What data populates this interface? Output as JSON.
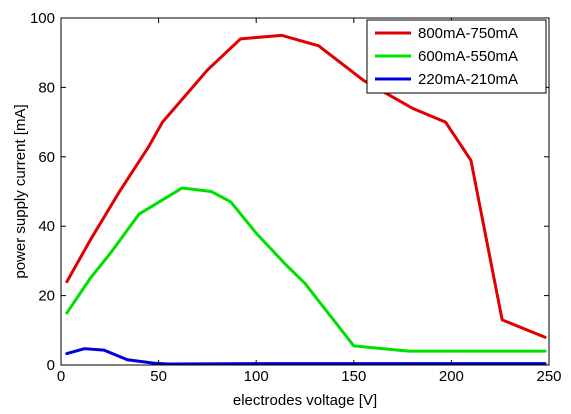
{
  "chart_data": {
    "type": "line",
    "xlabel": "electrodes voltage [V]",
    "ylabel": "power supply current [mA]",
    "xlim": [
      0,
      250
    ],
    "ylim": [
      0,
      100
    ],
    "xticks": [
      0,
      50,
      100,
      150,
      200,
      250
    ],
    "yticks": [
      0,
      20,
      40,
      60,
      80,
      100
    ],
    "grid": false,
    "legend_position": "top-right",
    "series": [
      {
        "name": "800mA-750mA",
        "color": "#e00000",
        "x": [
          3,
          15,
          30,
          45,
          52,
          75,
          92,
          113,
          132,
          155,
          180,
          197,
          210,
          226,
          248
        ],
        "y": [
          24,
          36,
          50,
          63,
          70,
          85,
          94,
          95,
          92,
          82,
          74,
          70,
          59,
          13,
          8
        ]
      },
      {
        "name": "600mA-550mA",
        "color": "#00e000",
        "x": [
          3,
          15,
          25,
          40,
          62,
          77,
          87,
          100,
          115,
          125,
          150,
          178,
          220,
          248
        ],
        "y": [
          15,
          25,
          32,
          43.5,
          51,
          50,
          47,
          38,
          29,
          23.5,
          5.5,
          4,
          4,
          4
        ]
      },
      {
        "name": "220mA-210mA",
        "color": "#0000dd",
        "x": [
          3,
          12,
          22,
          34,
          48,
          55,
          100,
          150,
          248
        ],
        "y": [
          3.3,
          4.7,
          4.3,
          1.5,
          0.5,
          0.3,
          0.4,
          0.4,
          0.4
        ]
      }
    ]
  }
}
